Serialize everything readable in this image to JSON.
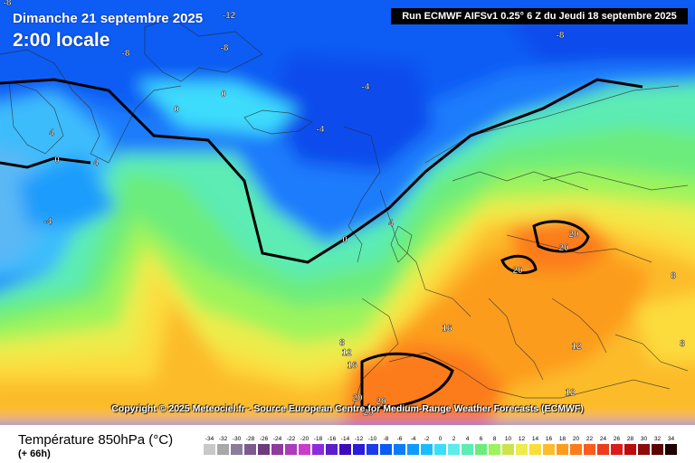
{
  "header": {
    "date_line": "Dimanche 21 septembre 2025",
    "time_line": "2:00 locale",
    "run_info": "Run ECMWF AIFSv1 0.25° 6 Z du Jeudi 18 septembre 2025"
  },
  "copyright": "Copyright © 2025 Meteociel.fr - Source European Centre for Medium-Range Weather Forecasts (ECMWF)",
  "footer": {
    "parameter": "Température 850hPa (°C)",
    "lead_time": "(+ 66h)"
  },
  "legend": {
    "values": [
      "-34",
      "-32",
      "-30",
      "-28",
      "-26",
      "-24",
      "-22",
      "-20",
      "-18",
      "-16",
      "-14",
      "-12",
      "-10",
      "-8",
      "-6",
      "-4",
      "-2",
      "0",
      "2",
      "4",
      "6",
      "8",
      "10",
      "12",
      "14",
      "16",
      "18",
      "20",
      "22",
      "24",
      "26",
      "28",
      "30",
      "32",
      "34"
    ],
    "colors": [
      "#c8c8c8",
      "#a8a8a8",
      "#8c7c9c",
      "#7c5c8c",
      "#6c3c7c",
      "#8c3c9c",
      "#ac3cbc",
      "#cc3ccc",
      "#8c2cdc",
      "#5c1ccc",
      "#3c0cbc",
      "#2c1cdc",
      "#1c3cec",
      "#0c5cf4",
      "#0c7cfc",
      "#0c9cfc",
      "#1cbcfc",
      "#3cdcfc",
      "#5cecec",
      "#5cecb4",
      "#6cec7c",
      "#9cf45c",
      "#cce44c",
      "#ecec4c",
      "#fcdc3c",
      "#fcbc2c",
      "#fc9c1c",
      "#fc7c1c",
      "#fc5c1c",
      "#ec3c1c",
      "#dc1c1c",
      "#bc0c0c",
      "#8c0c0c",
      "#5c0404",
      "#1c0000"
    ]
  },
  "map_labels": [
    {
      "text": "-12",
      "tone": "light"
    },
    {
      "text": "-8",
      "tone": "light"
    },
    {
      "text": "-8",
      "tone": "light"
    },
    {
      "text": "-8",
      "tone": "light"
    },
    {
      "text": "-8",
      "tone": "light"
    },
    {
      "text": "0",
      "tone": "light"
    },
    {
      "text": "0",
      "tone": "light"
    },
    {
      "text": "-4",
      "tone": "light"
    },
    {
      "text": "4",
      "tone": "light"
    },
    {
      "text": "0",
      "tone": "light"
    },
    {
      "text": "4",
      "tone": "light"
    },
    {
      "text": "-4",
      "tone": "light"
    },
    {
      "text": "-4",
      "tone": "light"
    },
    {
      "text": "0",
      "tone": "light"
    },
    {
      "text": "4",
      "tone": "light"
    },
    {
      "text": "20",
      "tone": "light"
    },
    {
      "text": "20",
      "tone": "light"
    },
    {
      "text": "20",
      "tone": "light"
    },
    {
      "text": "8",
      "tone": "light"
    },
    {
      "text": "8",
      "tone": "light"
    },
    {
      "text": "16",
      "tone": "light"
    },
    {
      "text": "8",
      "tone": "light"
    },
    {
      "text": "12",
      "tone": "light"
    },
    {
      "text": "16",
      "tone": "light"
    },
    {
      "text": "12",
      "tone": "light"
    },
    {
      "text": "12",
      "tone": "light"
    },
    {
      "text": "20",
      "tone": "light"
    },
    {
      "text": "20",
      "tone": "light"
    },
    {
      "text": "20",
      "tone": "light"
    }
  ]
}
